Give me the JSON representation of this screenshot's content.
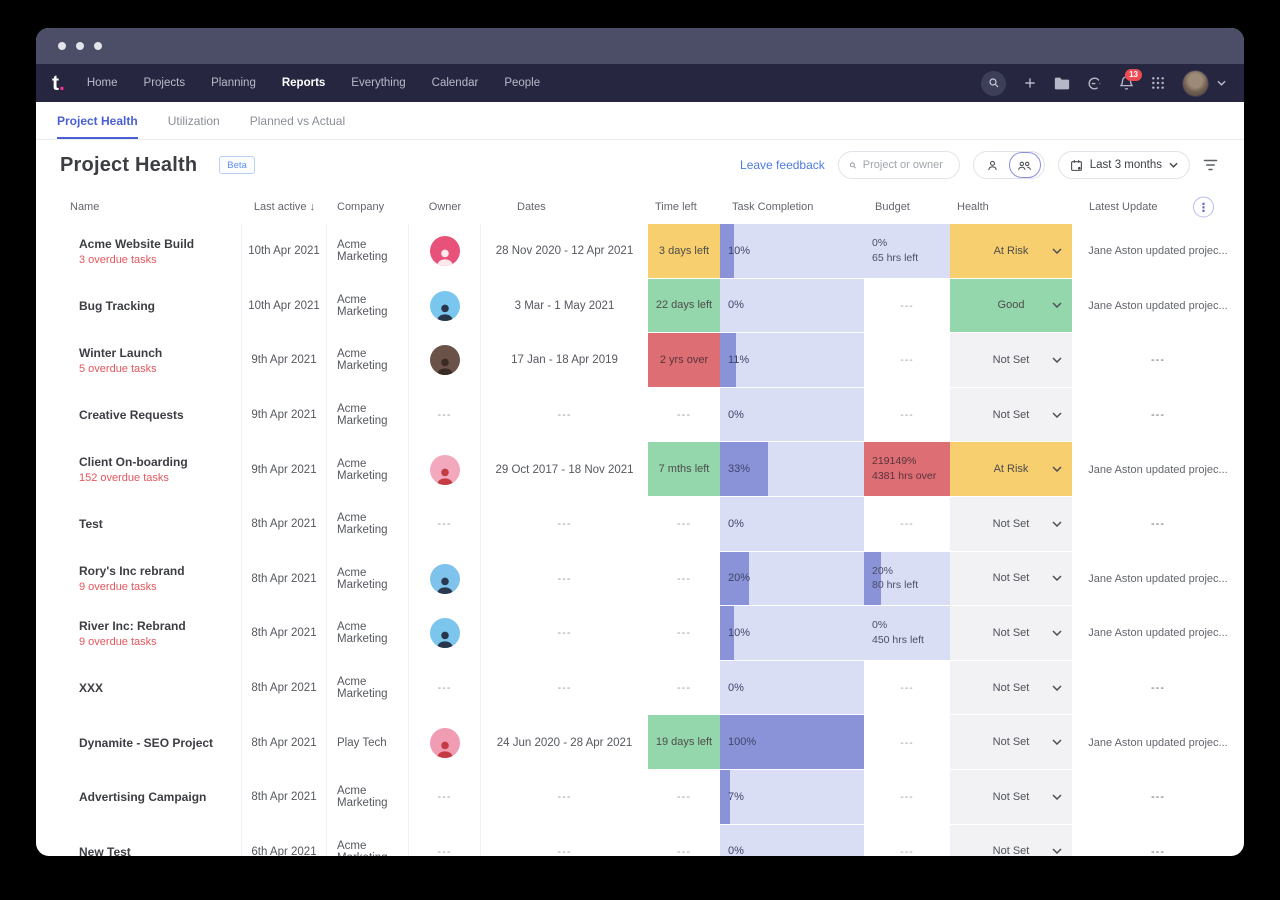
{
  "navbar": {
    "logo": "t",
    "logo_dot": ".",
    "items": [
      {
        "label": "Home",
        "active": false
      },
      {
        "label": "Projects",
        "active": false
      },
      {
        "label": "Planning",
        "active": false
      },
      {
        "label": "Reports",
        "active": true
      },
      {
        "label": "Everything",
        "active": false
      },
      {
        "label": "Calendar",
        "active": false
      },
      {
        "label": "People",
        "active": false
      }
    ],
    "notification_count": "13"
  },
  "tabs": [
    {
      "label": "Project Health",
      "active": true
    },
    {
      "label": "Utilization",
      "active": false
    },
    {
      "label": "Planned vs Actual",
      "active": false
    }
  ],
  "toolbar": {
    "title": "Project Health",
    "beta_label": "Beta",
    "leave_feedback": "Leave feedback",
    "search_placeholder": "Project or owner",
    "range_label": "Last 3 months"
  },
  "table": {
    "headers": [
      "Name",
      "Last active",
      "Company",
      "Owner",
      "Dates",
      "Time left",
      "Task Completion",
      "Budget",
      "Health",
      "Latest Update"
    ],
    "sorted_column": "Last active",
    "rows": [
      {
        "name": "Acme Website Build",
        "overdue": "3 overdue tasks",
        "last_active": "10th Apr 2021",
        "company": "Acme Marketing",
        "avatar": {
          "bg": "#e8527a",
          "fg": "#ffe9ee"
        },
        "dates": "28 Nov 2020 - 12 Apr 2021",
        "time_left": {
          "text": "3 days left",
          "variant": "yellow"
        },
        "completion": {
          "pct": 10,
          "label": "10%"
        },
        "budget": {
          "variant": "purple",
          "line1": "0%",
          "line2": "65 hrs left",
          "fill": 0
        },
        "health": {
          "label": "At Risk",
          "variant": "yellow"
        },
        "update": "Jane Aston updated projec..."
      },
      {
        "name": "Bug Tracking",
        "overdue": null,
        "last_active": "10th Apr 2021",
        "company": "Acme Marketing",
        "avatar": {
          "bg": "#79c7ef",
          "fg": "#27364a"
        },
        "dates": "3 Mar - 1 May 2021",
        "time_left": {
          "text": "22 days left",
          "variant": "green"
        },
        "completion": {
          "pct": 0,
          "label": "0%"
        },
        "budget": {
          "variant": "none"
        },
        "health": {
          "label": "Good",
          "variant": "green"
        },
        "update": "Jane Aston updated projec..."
      },
      {
        "name": "Winter Launch",
        "overdue": "5 overdue tasks",
        "last_active": "9th Apr 2021",
        "company": "Acme Marketing",
        "avatar": {
          "bg": "#6b5248",
          "fg": "#3a2b25"
        },
        "dates": "17 Jan - 18 Apr 2019",
        "time_left": {
          "text": "2 yrs over",
          "variant": "red"
        },
        "completion": {
          "pct": 11,
          "label": "11%"
        },
        "budget": {
          "variant": "none"
        },
        "health": {
          "label": "Not Set",
          "variant": "gray"
        },
        "update": null
      },
      {
        "name": "Creative Requests",
        "overdue": null,
        "last_active": "9th Apr 2021",
        "company": "Acme Marketing",
        "avatar": null,
        "dates": null,
        "time_left": {
          "text": null,
          "variant": "none"
        },
        "completion": {
          "pct": 0,
          "label": "0%"
        },
        "budget": {
          "variant": "none"
        },
        "health": {
          "label": "Not Set",
          "variant": "gray"
        },
        "update": null
      },
      {
        "name": "Client On-boarding",
        "overdue": "152 overdue tasks",
        "last_active": "9th Apr 2021",
        "company": "Acme Marketing",
        "avatar": {
          "bg": "#f2a9bd",
          "fg": "#c43b44"
        },
        "dates": "29 Oct 2017 - 18 Nov 2021",
        "time_left": {
          "text": "7 mths left",
          "variant": "green"
        },
        "completion": {
          "pct": 33,
          "label": "33%"
        },
        "budget": {
          "variant": "red",
          "line1": "219149%",
          "line2": "4381 hrs over",
          "fill": 0
        },
        "health": {
          "label": "At Risk",
          "variant": "yellow"
        },
        "update": "Jane Aston updated projec..."
      },
      {
        "name": "Test",
        "overdue": null,
        "last_active": "8th Apr 2021",
        "company": "Acme Marketing",
        "avatar": null,
        "dates": null,
        "time_left": {
          "text": null,
          "variant": "none"
        },
        "completion": {
          "pct": 0,
          "label": "0%"
        },
        "budget": {
          "variant": "none"
        },
        "health": {
          "label": "Not Set",
          "variant": "gray"
        },
        "update": null
      },
      {
        "name": "Rory's Inc rebrand",
        "overdue": "9 overdue tasks",
        "last_active": "8th Apr 2021",
        "company": "Acme Marketing",
        "avatar": {
          "bg": "#7fc3ec",
          "fg": "#2b3850"
        },
        "dates": null,
        "time_left": {
          "text": null,
          "variant": "none"
        },
        "completion": {
          "pct": 20,
          "label": "20%"
        },
        "budget": {
          "variant": "purple",
          "line1": "20%",
          "line2": "80 hrs left",
          "fill": 20
        },
        "health": {
          "label": "Not Set",
          "variant": "gray"
        },
        "update": "Jane Aston updated projec..."
      },
      {
        "name": "River Inc: Rebrand",
        "overdue": "9 overdue tasks",
        "last_active": "8th Apr 2021",
        "company": "Acme Marketing",
        "avatar": {
          "bg": "#7cc6ee",
          "fg": "#27364a"
        },
        "dates": null,
        "time_left": {
          "text": null,
          "variant": "none"
        },
        "completion": {
          "pct": 10,
          "label": "10%"
        },
        "budget": {
          "variant": "purple",
          "line1": "0%",
          "line2": "450 hrs left",
          "fill": 0
        },
        "health": {
          "label": "Not Set",
          "variant": "gray"
        },
        "update": "Jane Aston updated projec..."
      },
      {
        "name": "XXX",
        "overdue": null,
        "last_active": "8th Apr 2021",
        "company": "Acme Marketing",
        "avatar": null,
        "dates": null,
        "time_left": {
          "text": null,
          "variant": "none"
        },
        "completion": {
          "pct": 0,
          "label": "0%"
        },
        "budget": {
          "variant": "none"
        },
        "health": {
          "label": "Not Set",
          "variant": "gray"
        },
        "update": null
      },
      {
        "name": "Dynamite - SEO Project",
        "overdue": null,
        "last_active": "8th Apr 2021",
        "company": "Play Tech",
        "avatar": {
          "bg": "#f09cb3",
          "fg": "#c43b44"
        },
        "dates": "24 Jun 2020 - 28 Apr 2021",
        "time_left": {
          "text": "19 days left",
          "variant": "green"
        },
        "completion": {
          "pct": 100,
          "label": "100%"
        },
        "budget": {
          "variant": "none"
        },
        "health": {
          "label": "Not Set",
          "variant": "gray"
        },
        "update": "Jane Aston updated projec..."
      },
      {
        "name": "Advertising Campaign",
        "overdue": null,
        "last_active": "8th Apr 2021",
        "company": "Acme Marketing",
        "avatar": null,
        "dates": null,
        "time_left": {
          "text": null,
          "variant": "none"
        },
        "completion": {
          "pct": 7,
          "label": "7%"
        },
        "budget": {
          "variant": "none"
        },
        "health": {
          "label": "Not Set",
          "variant": "gray"
        },
        "update": null
      },
      {
        "name": "New Test",
        "overdue": null,
        "last_active": "6th Apr 2021",
        "company": "Acme Marketing",
        "avatar": null,
        "dates": null,
        "time_left": {
          "text": null,
          "variant": "none"
        },
        "completion": {
          "pct": 0,
          "label": "0%"
        },
        "budget": {
          "variant": "none"
        },
        "health": {
          "label": "Not Set",
          "variant": "gray"
        },
        "update": null
      }
    ],
    "empty_value": "---"
  },
  "palette": {
    "time_ok": "#95d7ac",
    "time_warn": "#f8cf6e",
    "time_over": "#dd6e74",
    "completion_track": "#dadef5",
    "completion_fill": "#8a93d8",
    "health_not_set": "#f2f2f5",
    "overdue_text": "#e2575e",
    "accent_blue": "#4a5fd0",
    "navbar_bg": "#262640",
    "titlebar_bg": "#4b4e66",
    "logo_dot": "#f62e95",
    "badge_red": "#ee4b55"
  }
}
